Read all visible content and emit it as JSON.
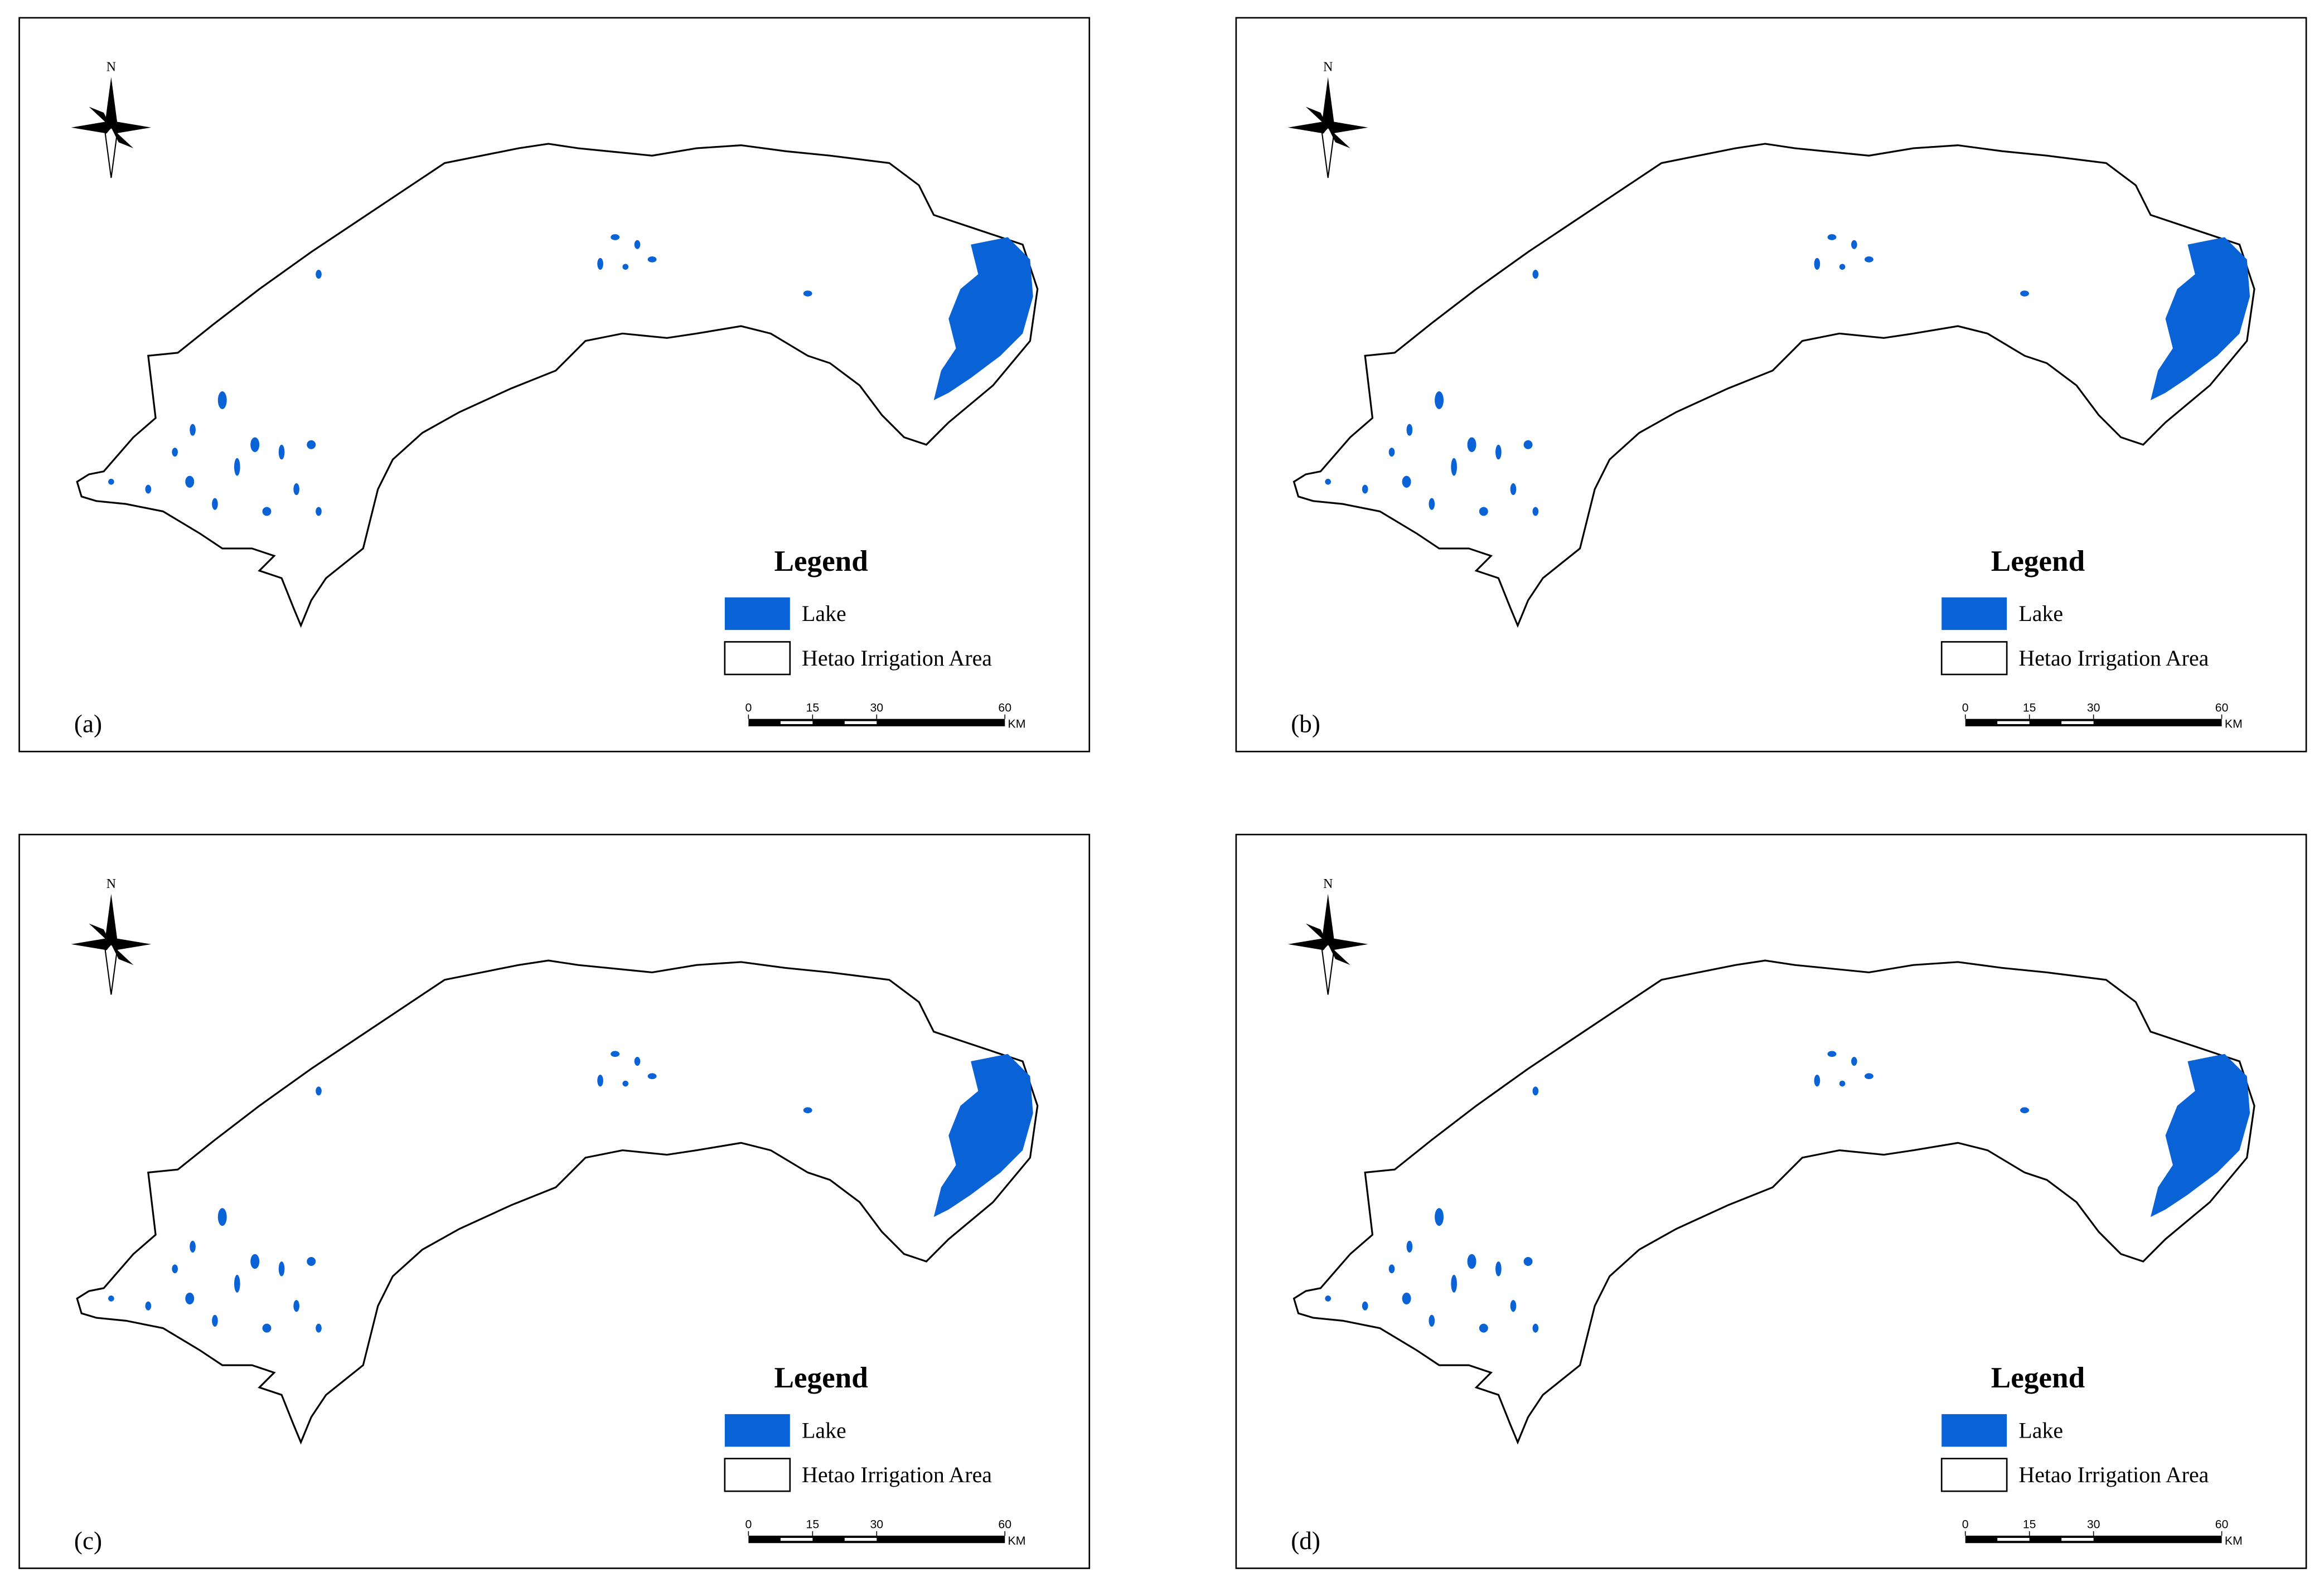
{
  "panels": [
    {
      "label": "(a)",
      "north": "N",
      "legend": {
        "title": "Legend",
        "items": [
          "Lake",
          "Hetao Irrigation Area"
        ]
      },
      "scale_bar": {
        "ticks": [
          0,
          15,
          30,
          60
        ],
        "unit": "KM"
      }
    },
    {
      "label": "(b)",
      "north": "N",
      "legend": {
        "title": "Legend",
        "items": [
          "Lake",
          "Hetao Irrigation Area"
        ]
      },
      "scale_bar": {
        "ticks": [
          0,
          15,
          30,
          60
        ],
        "unit": "KM"
      }
    },
    {
      "label": "(c)",
      "north": "N",
      "legend": {
        "title": "Legend",
        "items": [
          "Lake",
          "Hetao Irrigation Area"
        ]
      },
      "scale_bar": {
        "ticks": [
          0,
          15,
          30,
          60
        ],
        "unit": "KM"
      }
    },
    {
      "label": "(d)",
      "north": "N",
      "legend": {
        "title": "Legend",
        "items": [
          "Lake",
          "Hetao Irrigation Area"
        ]
      },
      "scale_bar": {
        "ticks": [
          0,
          15,
          30,
          60
        ],
        "unit": "KM"
      }
    }
  ]
}
